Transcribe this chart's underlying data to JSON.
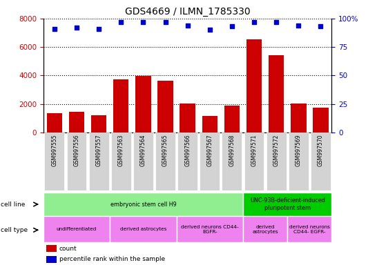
{
  "title": "GDS4669 / ILMN_1785330",
  "samples": [
    "GSM997555",
    "GSM997556",
    "GSM997557",
    "GSM997563",
    "GSM997564",
    "GSM997565",
    "GSM997566",
    "GSM997567",
    "GSM997568",
    "GSM997571",
    "GSM997572",
    "GSM997569",
    "GSM997570"
  ],
  "counts": [
    1350,
    1450,
    1230,
    3750,
    3950,
    3650,
    2050,
    1180,
    1900,
    6550,
    5450,
    2050,
    1750
  ],
  "percentiles": [
    91,
    92,
    91,
    97,
    97,
    97,
    94,
    90,
    93,
    97,
    97,
    94,
    93
  ],
  "bar_color": "#cc0000",
  "dot_color": "#0000cc",
  "ylim_left": [
    0,
    8000
  ],
  "yticks_left": [
    0,
    2000,
    4000,
    6000,
    8000
  ],
  "yticks_right_labels": [
    "0",
    "25",
    "50",
    "75",
    "100%"
  ],
  "cell_line_groups": [
    {
      "label": "embryonic stem cell H9",
      "start": 0,
      "end": 9,
      "color": "#90ee90"
    },
    {
      "label": "UNC-93B-deficient-induced\npluripotent stem",
      "start": 9,
      "end": 13,
      "color": "#00cc00"
    }
  ],
  "cell_type_groups": [
    {
      "label": "undifferentiated",
      "start": 0,
      "end": 3,
      "color": "#ee82ee"
    },
    {
      "label": "derived astrocytes",
      "start": 3,
      "end": 6,
      "color": "#ee82ee"
    },
    {
      "label": "derived neurons CD44-\nEGFR-",
      "start": 6,
      "end": 9,
      "color": "#ee82ee"
    },
    {
      "label": "derived\nastrocytes",
      "start": 9,
      "end": 11,
      "color": "#ee82ee"
    },
    {
      "label": "derived neurons\nCD44- EGFR-",
      "start": 11,
      "end": 13,
      "color": "#ee82ee"
    }
  ],
  "legend_count_color": "#cc0000",
  "legend_pct_color": "#0000cc",
  "background_color": "#ffffff",
  "tick_color_left": "#cc0000",
  "tick_color_right": "#0000cc",
  "xtick_bg": "#d3d3d3"
}
